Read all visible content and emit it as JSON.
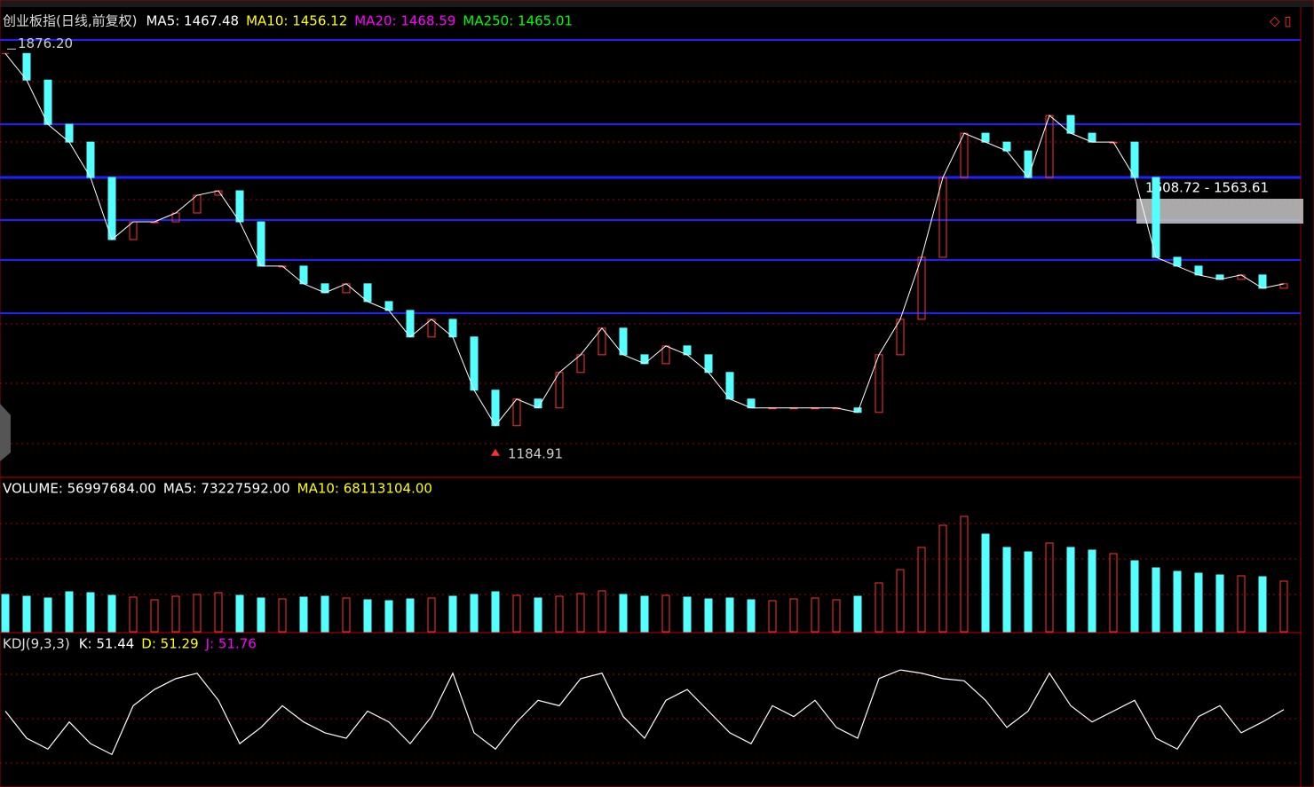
{
  "chart_data": [
    {
      "type": "candlestick",
      "title": "创业板指(日线,前复权)",
      "indicators": [
        {
          "name": "MA5: 1467.48",
          "color": "#ffffff"
        },
        {
          "name": "MA10: 1456.12",
          "color": "#ffff00"
        },
        {
          "name": "MA20: 1468.59",
          "color": "#ff00ff"
        },
        {
          "name": "MA250: 1465.01",
          "color": "#00ff00"
        }
      ],
      "values": [
        1868.6,
        1823.0,
        1747.1,
        1716.7,
        1656.0,
        1549.6,
        1580.0,
        1580.0,
        1595.2,
        1625.6,
        1633.2,
        1580.0,
        1504.1,
        1504.1,
        1473.8,
        1458.5,
        1473.8,
        1443.3,
        1428.1,
        1382.6,
        1412.9,
        1382.6,
        1291.4,
        1230.6,
        1276.2,
        1261.0,
        1321.8,
        1352.1,
        1397.7,
        1352.1,
        1336.9,
        1367.3,
        1352.1,
        1321.8,
        1276.2,
        1261.0,
        1261.0,
        1261.0,
        1261.0,
        1261.0,
        1253.4,
        1352.1,
        1412.9,
        1519.2,
        1656.0,
        1731.9,
        1716.7,
        1701.5,
        1656.0,
        1762.3,
        1731.9,
        1716.7,
        1716.7,
        1656.0,
        1519.2,
        1504.1,
        1488.9,
        1481.3,
        1488.9,
        1466.1,
        1473.8
      ],
      "up_color": "#ff3232",
      "down_color": "#54ffff",
      "ylim": [
        1142,
        1942
      ],
      "high": {
        "value": 1876.2,
        "label": "1876.20"
      },
      "low": 1184.91,
      "range_label": "1608.72 - 1563.61"
    },
    {
      "type": "bar",
      "indicators": [
        {
          "name": "VOLUME: 56997684.00",
          "color": "#ffffff"
        },
        {
          "name": "MA5: 73227592.00",
          "color": "#ffffff"
        },
        {
          "name": "MA10: 68113104.00",
          "color": "#ffff00"
        }
      ],
      "values": [
        42000000,
        40000000,
        38000000,
        45000000,
        44000000,
        41000000,
        39000000,
        36000000,
        40000000,
        42000000,
        44000000,
        41000000,
        38000000,
        37000000,
        39000000,
        40000000,
        38000000,
        36000000,
        35000000,
        37000000,
        38000000,
        40000000,
        42000000,
        45000000,
        41000000,
        38000000,
        40000000,
        43000000,
        46000000,
        42000000,
        40000000,
        41000000,
        39000000,
        37000000,
        38000000,
        36000000,
        35000000,
        37000000,
        38000000,
        36000000,
        40000000,
        55000000,
        70000000,
        95000000,
        120000000,
        130000000,
        110000000,
        95000000,
        90000000,
        100000000,
        95000000,
        92000000,
        88000000,
        80000000,
        72000000,
        68000000,
        66000000,
        64000000,
        63000000,
        62000000,
        56997684
      ],
      "ylim": [
        0,
        172000000
      ]
    },
    {
      "type": "line",
      "title": "KDJ(9,3,3)",
      "indicators": [
        {
          "name": "K: 51.44",
          "color": "#ffffff"
        },
        {
          "name": "D: 51.29",
          "color": "#ffff00"
        },
        {
          "name": "J: 51.76",
          "color": "#ff00ff"
        }
      ],
      "values": [
        50,
        25,
        15,
        40,
        20,
        10,
        55,
        70,
        80,
        85,
        60,
        20,
        35,
        55,
        40,
        30,
        25,
        50,
        40,
        20,
        45,
        85,
        30,
        15,
        40,
        60,
        55,
        80,
        85,
        45,
        25,
        60,
        70,
        50,
        30,
        20,
        55,
        45,
        60,
        35,
        25,
        80,
        88,
        85,
        80,
        78,
        60,
        35,
        50,
        85,
        55,
        40,
        50,
        60,
        25,
        15,
        45,
        55,
        30,
        40,
        51.44
      ],
      "color": "#ffffff",
      "ylim": [
        -20,
        120
      ]
    }
  ]
}
